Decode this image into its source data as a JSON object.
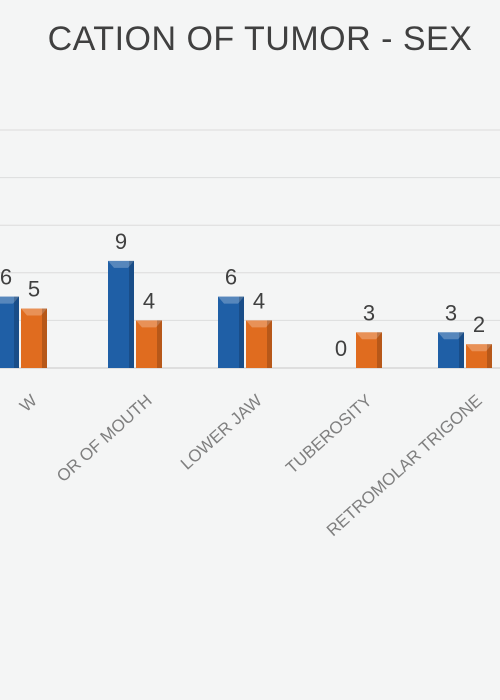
{
  "chart_data": {
    "type": "bar",
    "title": "CATION OF TUMOR - SEX",
    "categories": [
      "W",
      "OR OF MOUTH",
      "LOWER JAW",
      "TUBEROSITY",
      "RETROMOLAR TRIGONE"
    ],
    "series": [
      {
        "name": "",
        "color": "#1f5fa6",
        "values": [
          6,
          9,
          6,
          0,
          3
        ]
      },
      {
        "name": "",
        "color": "#e06c1f",
        "values": [
          5,
          4,
          4,
          3,
          2
        ]
      }
    ],
    "ylim": [
      0,
      20
    ],
    "grid": true,
    "legend": "none"
  }
}
